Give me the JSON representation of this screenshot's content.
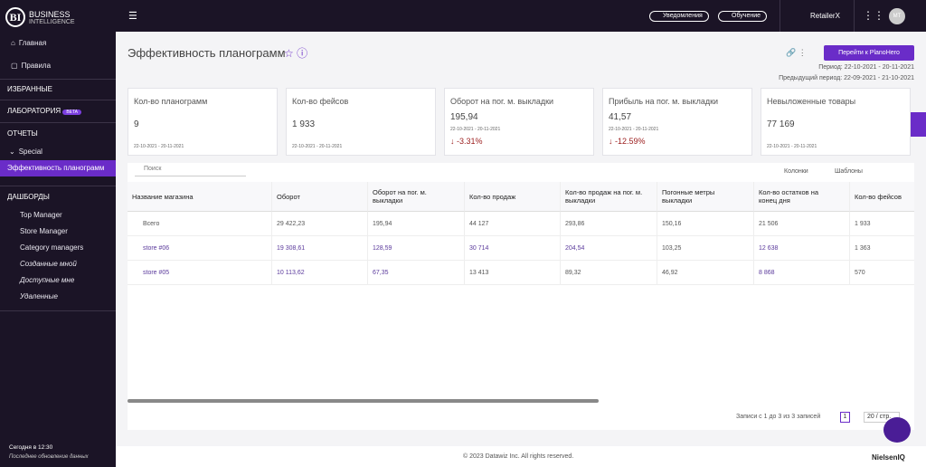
{
  "brand": {
    "logo": "BI",
    "name": "BUSINESS",
    "sub": "INTELLIGENCE"
  },
  "topbar": {
    "notifications": "Уведомления",
    "learning": "Обучение",
    "company": "RetailerX",
    "avatar": "МТ"
  },
  "sidebar": {
    "top": [
      "Главная",
      "Правила"
    ],
    "favorites": "ИЗБРАННЫЕ",
    "lab": {
      "label": "ЛАБОРАТОРИЯ",
      "badge": "BETA"
    },
    "reports": {
      "label": "ОТЧЕТЫ",
      "items": [
        "Special",
        "Эффективность планограмм"
      ]
    },
    "dashboards": {
      "label": "ДАШБОРДЫ",
      "items": [
        "Top Manager",
        "Store Manager",
        "Category managers",
        "Созданные мной",
        "Доступные мне",
        "Удаленные"
      ]
    },
    "status": {
      "today": "Сегодня в 12:30",
      "last_update": "Последнее обновление данных"
    }
  },
  "page": {
    "title": "Эффективность планограмм",
    "button": "Перейти к PlanoHero",
    "period": "Период: 22-10-2021 - 20-11-2021",
    "prev_period": "Предыдущий период: 22-09-2021 - 21-10-2021"
  },
  "cards": [
    {
      "label": "Кол-во планограмм",
      "value": "9",
      "date": "22-10-2021 - 20-11-2021"
    },
    {
      "label": "Кол-во фейсов",
      "value": "1 933",
      "date": "22-10-2021 - 20-11-2021"
    },
    {
      "label": "Оборот на пог. м. выкладки",
      "value": "195,94",
      "date": "22-10-2021 - 20-11-2021",
      "change": "-3.31%"
    },
    {
      "label": "Прибыль на пог. м. выкладки",
      "value": "41,57",
      "date": "22-10-2021 - 20-11-2021",
      "change": "-12.59%"
    },
    {
      "label": "Невыложенные товары",
      "value": "77 169",
      "date": "22-10-2021 - 20-11-2021"
    }
  ],
  "table": {
    "search": "Поиск",
    "columns_btn": "Колонки",
    "templates_btn": "Шаблоны",
    "headers": [
      "Название магазина",
      "Оборот",
      "Оборот на пог. м. выкладки",
      "Кол-во продаж",
      "Кол-во продаж на пог. м. выкладки",
      "Погонные метры выкладки",
      "Кол-во остатков на конец дня",
      "Кол-во фейсов"
    ],
    "rows": [
      [
        "Всего",
        "29 422,23",
        "195,94",
        "44 127",
        "293,86",
        "150,16",
        "21 506",
        "1 933"
      ],
      [
        "store #06",
        "19 308,61",
        "128,59",
        "30 714",
        "204,54",
        "103,25",
        "12 638",
        "1 363"
      ],
      [
        "store #05",
        "10 113,62",
        "67,35",
        "13 413",
        "89,32",
        "46,92",
        "8 868",
        "570"
      ]
    ]
  },
  "pagination": {
    "info": "Записи с 1 до 3 из 3 записей",
    "page": "1",
    "per_page": "20 / стр."
  },
  "footer": {
    "copyright": "© 2023 Datawiz Inc. All rights reserved.",
    "partner": "NielsenIQ"
  }
}
